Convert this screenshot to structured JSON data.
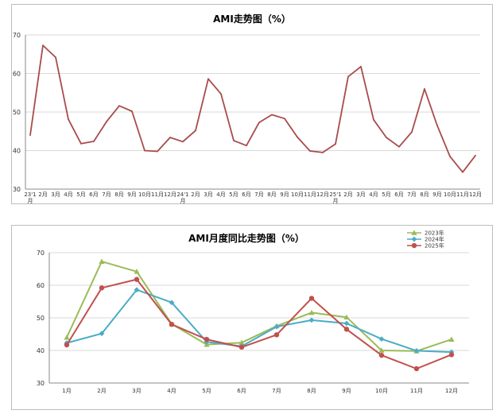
{
  "chart_data": [
    {
      "type": "line",
      "title": "AMI走势图（%）",
      "ylim": [
        30,
        70
      ],
      "yticks": [
        30,
        40,
        50,
        60,
        70
      ],
      "grid": true,
      "categories": [
        "23'1月",
        "2月",
        "3月",
        "4月",
        "5月",
        "6月",
        "7月",
        "8月",
        "9月",
        "10月",
        "11月",
        "12月",
        "24'1月",
        "2月",
        "3月",
        "4月",
        "5月",
        "6月",
        "7月",
        "8月",
        "9月",
        "10月",
        "11月",
        "12月",
        "25'1月",
        "2月",
        "3月",
        "4月",
        "5月",
        "6月",
        "7月",
        "8月",
        "9月",
        "10月",
        "11月",
        "12月"
      ],
      "series": [
        {
          "color": "#a94b4b",
          "values": [
            44.0,
            67.3,
            64.2,
            48.1,
            41.8,
            42.4,
            47.5,
            51.6,
            50.2,
            40.0,
            39.8,
            43.4,
            42.3,
            45.2,
            58.6,
            54.7,
            42.6,
            41.3,
            47.3,
            49.3,
            48.3,
            43.5,
            39.9,
            39.5,
            41.7,
            59.2,
            61.8,
            48.0,
            43.4,
            41.0,
            44.8,
            56.0,
            46.5,
            38.5,
            34.4,
            38.7
          ]
        }
      ]
    },
    {
      "type": "line",
      "title": "AMI月度同比走势图（%）",
      "ylim": [
        30,
        70
      ],
      "yticks": [
        30,
        40,
        50,
        60,
        70
      ],
      "grid": true,
      "legend": "top-right",
      "categories": [
        "1月",
        "2月",
        "3月",
        "4月",
        "5月",
        "6月",
        "7月",
        "8月",
        "9月",
        "10月",
        "11月",
        "12月"
      ],
      "series": [
        {
          "name": "2023年",
          "color": "#9bbb59",
          "marker": "triangle",
          "values": [
            44.0,
            67.3,
            64.2,
            48.1,
            41.8,
            42.4,
            47.5,
            51.6,
            50.2,
            40.0,
            39.8,
            43.4
          ]
        },
        {
          "name": "2024年",
          "color": "#4bacc6",
          "marker": "diamond",
          "values": [
            42.3,
            45.2,
            58.6,
            54.7,
            42.6,
            41.3,
            47.3,
            49.3,
            48.3,
            43.5,
            39.9,
            39.5
          ]
        },
        {
          "name": "2025年",
          "color": "#c0504d",
          "marker": "circle",
          "values": [
            41.7,
            59.2,
            61.8,
            48.0,
            43.4,
            41.0,
            44.8,
            56.0,
            46.5,
            38.5,
            34.4,
            38.7
          ]
        }
      ]
    }
  ]
}
